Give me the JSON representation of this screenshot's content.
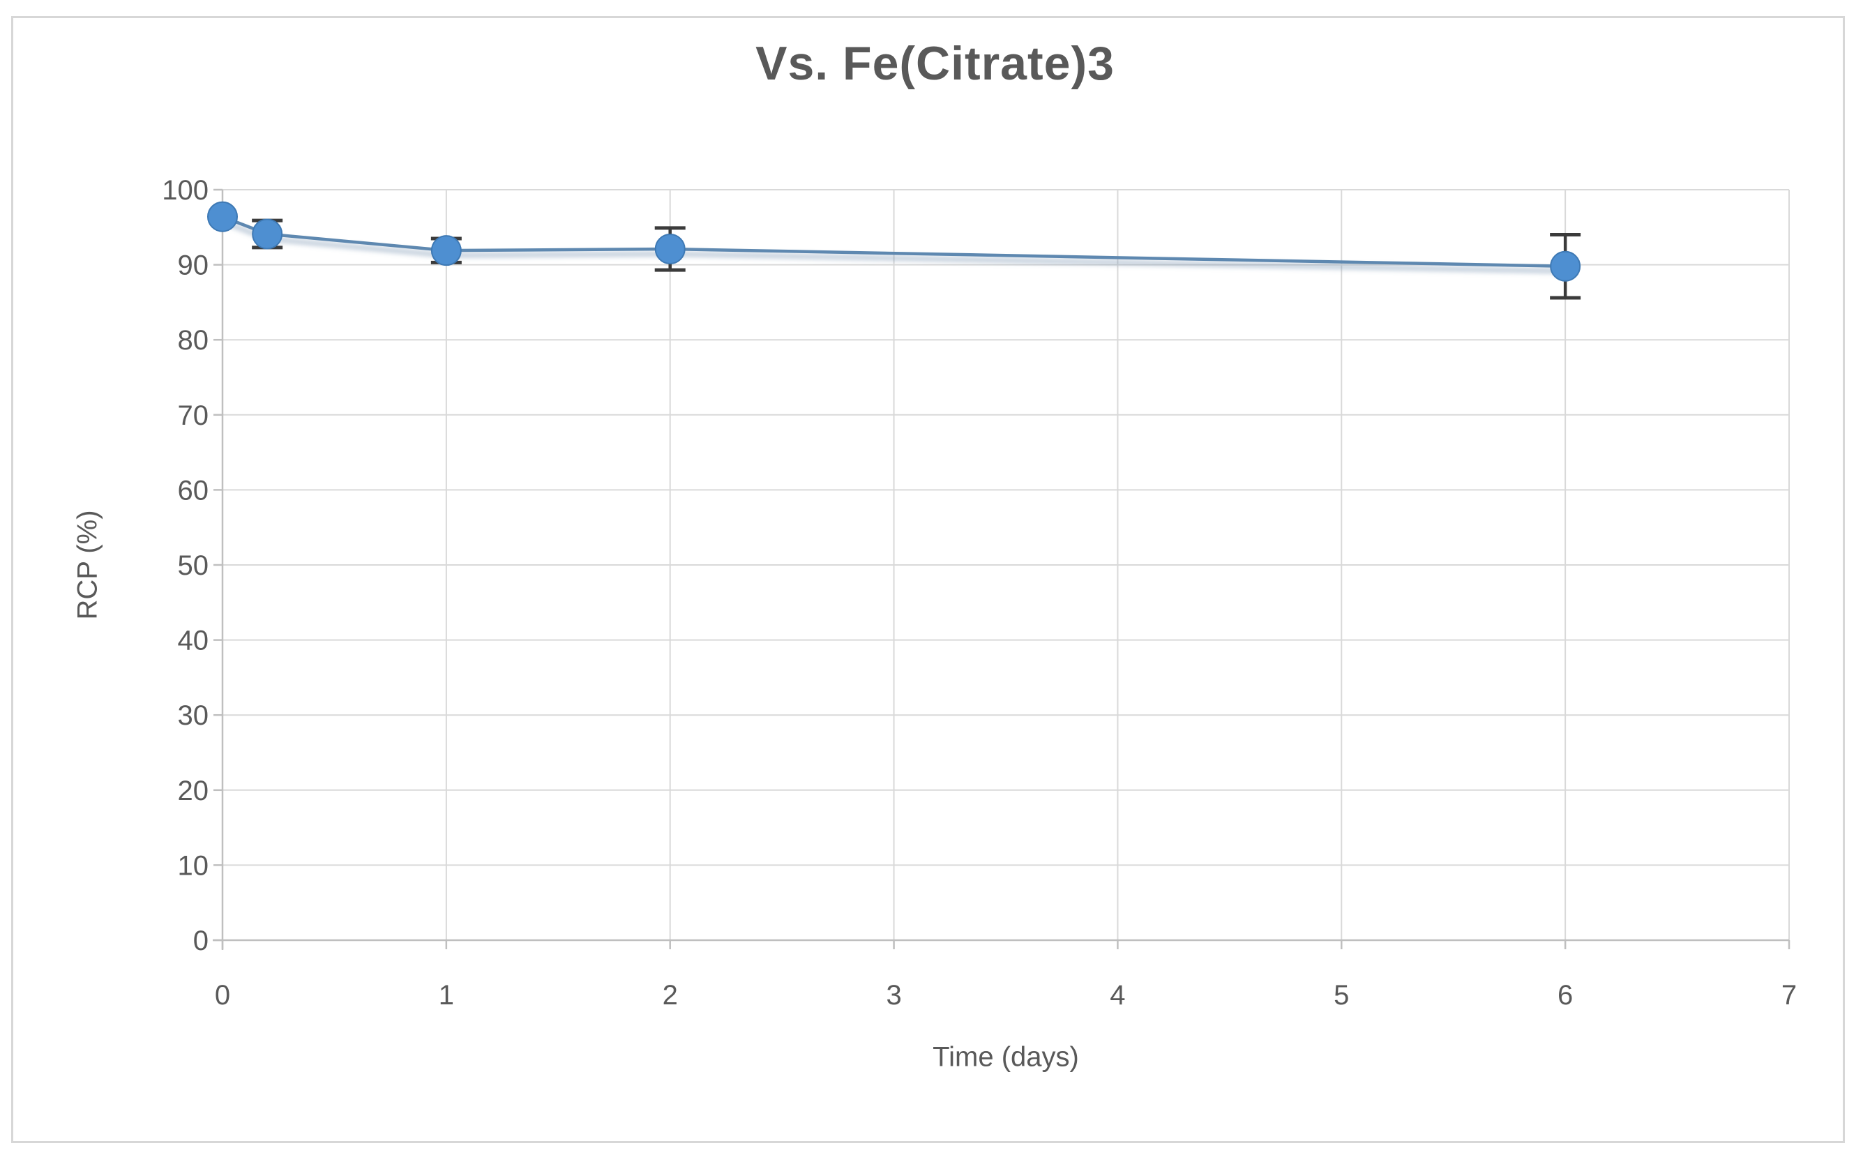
{
  "chart": {
    "title": "Vs. Fe(Citrate)3",
    "xlabel": "Time (days)",
    "ylabel": "RCP (%)"
  },
  "chart_data": {
    "type": "line",
    "title": "Vs. Fe(Citrate)3",
    "xlabel": "Time (days)",
    "ylabel": "RCP (%)",
    "x": [
      0,
      0.2,
      1,
      2,
      6
    ],
    "y": [
      96.4,
      94.1,
      91.9,
      92.1,
      89.8
    ],
    "y_error": [
      0,
      1.8,
      1.6,
      2.8,
      4.2
    ],
    "xlim": [
      0,
      7
    ],
    "ylim": [
      0,
      100
    ],
    "x_ticks": [
      "0",
      "1",
      "2",
      "3",
      "4",
      "5",
      "6",
      "7"
    ],
    "y_ticks": [
      "0",
      "10",
      "20",
      "30",
      "40",
      "50",
      "60",
      "70",
      "80",
      "90",
      "100"
    ],
    "grid": true,
    "legend": false,
    "colors": {
      "title_text": "#595959",
      "axis_text": "#595959",
      "gridline": "#d9d9d9",
      "axis_line": "#bfbfbf",
      "tick_mark": "#bfbfbf",
      "line": "#5e88b0",
      "line_shadow": "rgba(110,140,170,0.38)",
      "marker_fill": "#4e8fd1",
      "marker_stroke": "#3e79b4",
      "error_bar": "#3b3b3b",
      "frame_border": "#d7d7d7"
    }
  }
}
